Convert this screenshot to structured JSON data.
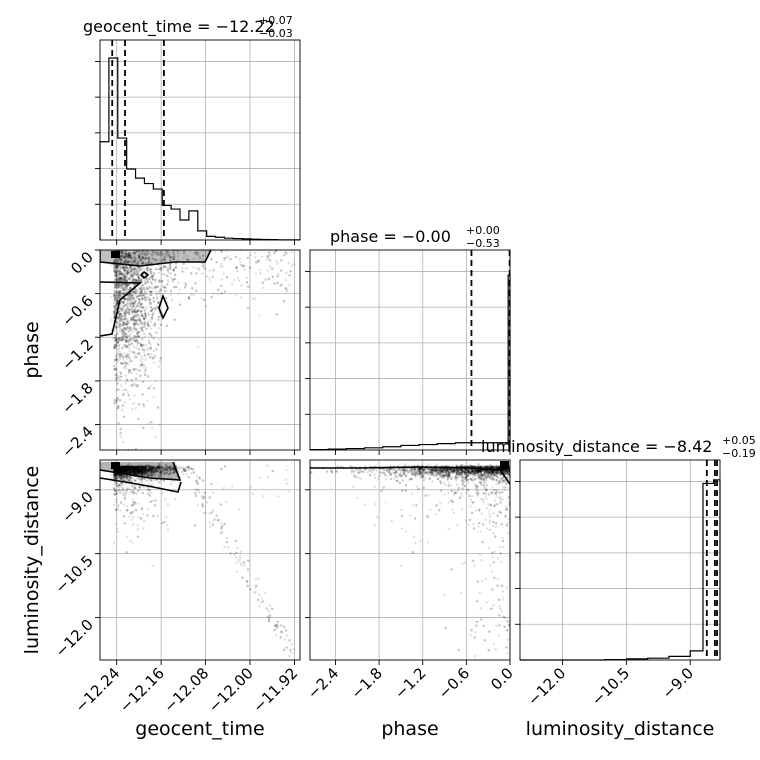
{
  "chart_data": {
    "type": "corner",
    "parameters": [
      {
        "name": "geocent_time",
        "axis_label": "geocent_time",
        "title_prefix": "geocent_time = ",
        "median": "−12.22",
        "plus": "+0.07",
        "minus": "−0.03",
        "range": [
          -12.27,
          -11.91
        ],
        "ticks": [
          -12.24,
          -12.16,
          -12.08,
          -12.0,
          -11.92
        ],
        "tick_labels": [
          "−12.24",
          "−12.16",
          "−12.08",
          "−12.00",
          "−11.92"
        ],
        "quantiles": [
          -12.248,
          -12.225,
          -12.155
        ],
        "hist_bins": [
          -12.27,
          -12.254,
          -12.238,
          -12.222,
          -12.206,
          -12.19,
          -12.174,
          -12.158,
          -12.142,
          -12.126,
          -12.11,
          -12.094,
          -12.078,
          -12.062,
          -12.046,
          -12.03,
          -12.014,
          -11.998,
          -11.982,
          -11.966,
          -11.95,
          -11.934,
          -11.91
        ],
        "hist_counts": [
          0.54,
          1.0,
          0.56,
          0.39,
          0.34,
          0.31,
          0.28,
          0.19,
          0.17,
          0.11,
          0.16,
          0.05,
          0.02,
          0.015,
          0.01,
          0.008,
          0.006,
          0.004,
          0.003,
          0.002,
          0.001,
          0.001
        ]
      },
      {
        "name": "phase",
        "axis_label": "phase",
        "title_prefix": "phase = ",
        "median": "−0.00",
        "plus": "+0.00",
        "minus": "−0.53",
        "range": [
          -2.75,
          0.0
        ],
        "ticks": [
          -2.4,
          -1.8,
          -1.2,
          -0.6,
          0.0
        ],
        "tick_labels": [
          "−2.4",
          "−1.8",
          "−1.2",
          "−0.6",
          "0.0"
        ],
        "quantiles": [
          -0.53,
          -0.005
        ],
        "hist_bins": [
          -2.75,
          -2.5,
          -2.25,
          -2.0,
          -1.75,
          -1.5,
          -1.25,
          -1.0,
          -0.75,
          -0.5,
          -0.25,
          -0.025,
          0.0
        ],
        "hist_counts": [
          0.002,
          0.005,
          0.008,
          0.012,
          0.018,
          0.025,
          0.03,
          0.035,
          0.04,
          0.04,
          0.04,
          0.96
        ]
      },
      {
        "name": "luminosity_distance",
        "axis_label": "luminosity_distance",
        "title_prefix": "luminosity_distance = ",
        "median": "−8.42",
        "plus": "+0.05",
        "minus": "−0.19",
        "range": [
          -13.0,
          -8.3
        ],
        "ticks": [
          -12.0,
          -10.5,
          -9.0
        ],
        "tick_labels": [
          "−12.0",
          "−10.5",
          "−9.0"
        ],
        "quantiles": [
          -8.61,
          -8.42,
          -8.37
        ],
        "hist_bins": [
          -13.0,
          -12.5,
          -12.0,
          -11.5,
          -11.0,
          -10.5,
          -10.0,
          -9.5,
          -9.0,
          -8.7,
          -8.45,
          -8.3
        ],
        "hist_counts": [
          0.0,
          0.0,
          0.0,
          0.0,
          0.002,
          0.006,
          0.01,
          0.02,
          0.05,
          0.97,
          0.99
        ]
      }
    ],
    "contour_levels": 2,
    "grid": true
  }
}
